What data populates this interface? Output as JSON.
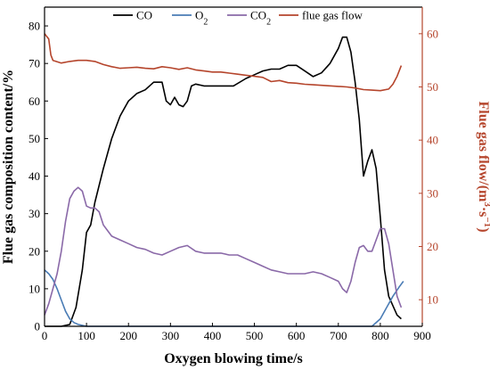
{
  "chart_data": {
    "type": "line",
    "xlabel": "Oxygen blowing time/s",
    "ylabel_left": "Flue gas composition content/%",
    "ylabel_right_parts": [
      "Flue gas flow/(m",
      "3",
      "·s",
      "−1",
      ")"
    ],
    "x_range": [
      0,
      900
    ],
    "y_left_range": [
      0,
      85
    ],
    "y_right_range": [
      5,
      65
    ],
    "x_ticks": [
      "0",
      "100",
      "200",
      "300",
      "400",
      "500",
      "600",
      "700",
      "800",
      "900"
    ],
    "y_left_ticks": [
      "0",
      "10",
      "20",
      "30",
      "40",
      "50",
      "60",
      "70",
      "80"
    ],
    "y_right_ticks": [
      "10",
      "20",
      "30",
      "40",
      "50",
      "60"
    ],
    "legend": [
      {
        "key": "co",
        "label": "CO",
        "sub": ""
      },
      {
        "key": "o2",
        "label": "O",
        "sub": "2"
      },
      {
        "key": "co2",
        "label": "CO",
        "sub": "2"
      },
      {
        "key": "flow",
        "label": "flue gas flow",
        "sub": ""
      }
    ],
    "series": [
      {
        "key": "co",
        "name": "CO",
        "color": "#000000",
        "axis": "left",
        "points": [
          [
            0,
            0
          ],
          [
            40,
            0
          ],
          [
            60,
            0.5
          ],
          [
            75,
            5
          ],
          [
            90,
            15
          ],
          [
            100,
            25
          ],
          [
            110,
            27
          ],
          [
            120,
            33
          ],
          [
            140,
            42
          ],
          [
            160,
            50
          ],
          [
            180,
            56
          ],
          [
            200,
            60
          ],
          [
            220,
            62
          ],
          [
            240,
            63
          ],
          [
            260,
            65
          ],
          [
            280,
            65
          ],
          [
            290,
            60
          ],
          [
            300,
            59
          ],
          [
            310,
            61
          ],
          [
            320,
            59
          ],
          [
            330,
            58.5
          ],
          [
            340,
            60
          ],
          [
            350,
            64
          ],
          [
            360,
            64.5
          ],
          [
            380,
            64
          ],
          [
            420,
            64
          ],
          [
            450,
            64
          ],
          [
            480,
            66
          ],
          [
            500,
            67
          ],
          [
            520,
            68
          ],
          [
            540,
            68.5
          ],
          [
            560,
            68.5
          ],
          [
            580,
            69.5
          ],
          [
            600,
            69.5
          ],
          [
            620,
            68
          ],
          [
            640,
            66.5
          ],
          [
            660,
            67.5
          ],
          [
            680,
            70
          ],
          [
            700,
            74
          ],
          [
            710,
            77
          ],
          [
            720,
            77
          ],
          [
            730,
            73
          ],
          [
            740,
            65
          ],
          [
            750,
            55
          ],
          [
            760,
            40
          ],
          [
            770,
            44
          ],
          [
            780,
            47
          ],
          [
            790,
            42
          ],
          [
            800,
            29
          ],
          [
            810,
            15
          ],
          [
            820,
            8
          ],
          [
            840,
            3
          ],
          [
            850,
            2
          ]
        ]
      },
      {
        "key": "o2",
        "name": "O2",
        "color": "#4a7cb5",
        "axis": "left",
        "points": [
          [
            0,
            15
          ],
          [
            10,
            14
          ],
          [
            20,
            12.5
          ],
          [
            30,
            10
          ],
          [
            40,
            7
          ],
          [
            50,
            4
          ],
          [
            60,
            2
          ],
          [
            70,
            1
          ],
          [
            80,
            0.5
          ],
          [
            100,
            0
          ],
          [
            780,
            0
          ],
          [
            800,
            2
          ],
          [
            815,
            5
          ],
          [
            830,
            8
          ],
          [
            845,
            10.5
          ],
          [
            855,
            12
          ]
        ]
      },
      {
        "key": "co2",
        "name": "CO2",
        "color": "#8a69a8",
        "axis": "left",
        "points": [
          [
            0,
            3
          ],
          [
            10,
            6
          ],
          [
            20,
            10
          ],
          [
            30,
            14
          ],
          [
            40,
            20
          ],
          [
            50,
            28
          ],
          [
            60,
            34
          ],
          [
            70,
            36
          ],
          [
            80,
            37
          ],
          [
            90,
            36
          ],
          [
            100,
            32
          ],
          [
            110,
            31.5
          ],
          [
            120,
            31.5
          ],
          [
            130,
            30.5
          ],
          [
            140,
            27
          ],
          [
            160,
            24
          ],
          [
            180,
            23
          ],
          [
            200,
            22
          ],
          [
            220,
            21
          ],
          [
            240,
            20.5
          ],
          [
            260,
            19.5
          ],
          [
            280,
            19
          ],
          [
            300,
            20
          ],
          [
            320,
            21
          ],
          [
            340,
            21.5
          ],
          [
            360,
            20
          ],
          [
            380,
            19.5
          ],
          [
            400,
            19.5
          ],
          [
            420,
            19.5
          ],
          [
            440,
            19
          ],
          [
            460,
            19
          ],
          [
            480,
            18
          ],
          [
            500,
            17
          ],
          [
            520,
            16
          ],
          [
            540,
            15
          ],
          [
            560,
            14.5
          ],
          [
            580,
            14
          ],
          [
            600,
            14
          ],
          [
            620,
            14
          ],
          [
            640,
            14.5
          ],
          [
            660,
            14
          ],
          [
            680,
            13
          ],
          [
            700,
            12
          ],
          [
            710,
            10
          ],
          [
            720,
            9
          ],
          [
            730,
            12
          ],
          [
            740,
            17
          ],
          [
            750,
            21
          ],
          [
            760,
            21.5
          ],
          [
            770,
            20
          ],
          [
            780,
            20
          ],
          [
            790,
            23
          ],
          [
            800,
            26
          ],
          [
            810,
            26
          ],
          [
            820,
            22
          ],
          [
            830,
            15
          ],
          [
            840,
            8
          ],
          [
            850,
            5
          ]
        ]
      },
      {
        "key": "flow",
        "name": "flue gas flow",
        "color": "#b5452c",
        "axis": "right",
        "points": [
          [
            0,
            60
          ],
          [
            10,
            59
          ],
          [
            15,
            56
          ],
          [
            20,
            55
          ],
          [
            40,
            54.5
          ],
          [
            60,
            54.8
          ],
          [
            80,
            55
          ],
          [
            100,
            55
          ],
          [
            120,
            54.8
          ],
          [
            140,
            54.2
          ],
          [
            160,
            53.8
          ],
          [
            180,
            53.5
          ],
          [
            200,
            53.6
          ],
          [
            220,
            53.7
          ],
          [
            240,
            53.5
          ],
          [
            260,
            53.4
          ],
          [
            280,
            53.8
          ],
          [
            300,
            53.6
          ],
          [
            320,
            53.3
          ],
          [
            340,
            53.6
          ],
          [
            360,
            53.2
          ],
          [
            380,
            53
          ],
          [
            400,
            52.8
          ],
          [
            420,
            52.8
          ],
          [
            440,
            52.6
          ],
          [
            460,
            52.4
          ],
          [
            480,
            52.2
          ],
          [
            500,
            52
          ],
          [
            520,
            51.8
          ],
          [
            540,
            51
          ],
          [
            560,
            51.2
          ],
          [
            580,
            50.8
          ],
          [
            600,
            50.7
          ],
          [
            620,
            50.5
          ],
          [
            640,
            50.4
          ],
          [
            660,
            50.3
          ],
          [
            680,
            50.2
          ],
          [
            700,
            50.1
          ],
          [
            720,
            50
          ],
          [
            740,
            49.8
          ],
          [
            760,
            49.5
          ],
          [
            780,
            49.4
          ],
          [
            800,
            49.3
          ],
          [
            820,
            49.6
          ],
          [
            830,
            50.5
          ],
          [
            840,
            52
          ],
          [
            850,
            54
          ]
        ]
      }
    ]
  }
}
